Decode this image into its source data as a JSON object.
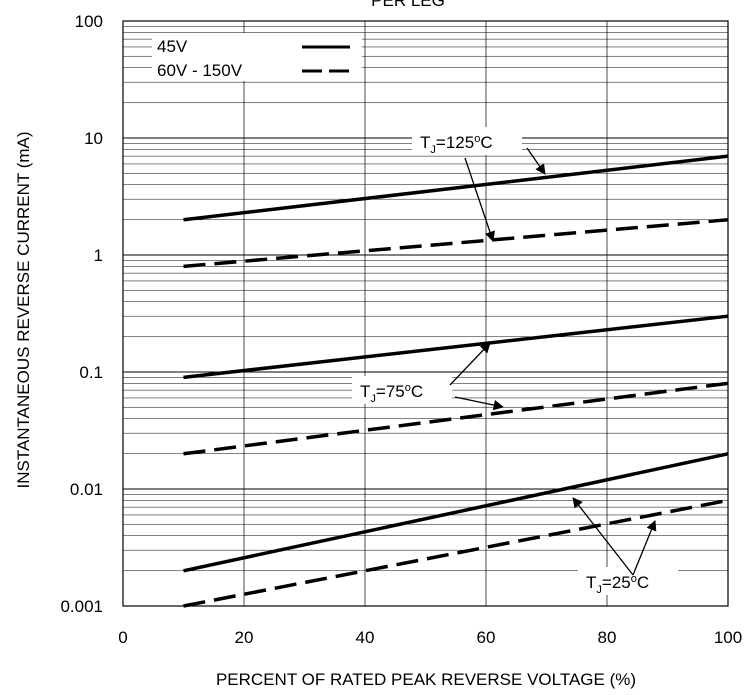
{
  "chart_data": {
    "type": "line",
    "title_partial": "PER LEG",
    "xlabel": "PERCENT OF RATED PEAK REVERSE VOLTAGE (%)",
    "ylabel": "INSTANTANEOUS REVERSE CURRENT (mA)",
    "xlim": [
      0,
      100
    ],
    "ylim": [
      0.001,
      100
    ],
    "yscale": "log",
    "grid": true,
    "xticks": [
      "0",
      "20",
      "40",
      "60",
      "80",
      "100"
    ],
    "yticks": [
      "0.001",
      "0.01",
      "0.1",
      "1",
      "10",
      "100"
    ],
    "legend_position": "top-left",
    "legend": [
      {
        "label": "45V",
        "style": "solid"
      },
      {
        "label": "60V - 150V",
        "style": "dashed"
      }
    ],
    "series": [
      {
        "group": "45V",
        "condition": "TJ=125°C",
        "style": "solid",
        "x": [
          10,
          100
        ],
        "y": [
          2,
          7
        ]
      },
      {
        "group": "60V - 150V",
        "condition": "TJ=125°C",
        "style": "dashed",
        "x": [
          10,
          100
        ],
        "y": [
          0.8,
          2
        ]
      },
      {
        "group": "45V",
        "condition": "TJ=75°C",
        "style": "solid",
        "x": [
          10,
          100
        ],
        "y": [
          0.09,
          0.3
        ]
      },
      {
        "group": "60V - 150V",
        "condition": "TJ=75°C",
        "style": "dashed",
        "x": [
          10,
          100
        ],
        "y": [
          0.02,
          0.08
        ]
      },
      {
        "group": "45V",
        "condition": "TJ=25°C",
        "style": "solid",
        "x": [
          10,
          100
        ],
        "y": [
          0.002,
          0.02
        ]
      },
      {
        "group": "60V - 150V",
        "condition": "TJ=25°C",
        "style": "dashed",
        "x": [
          10,
          100
        ],
        "y": [
          0.001,
          0.008
        ]
      }
    ],
    "annotations": [
      {
        "base": "T",
        "sub": "J",
        "mid": "=125",
        "sup": "o",
        "end": "C"
      },
      {
        "base": "T",
        "sub": "J",
        "mid": "=75",
        "sup": "o",
        "end": "C"
      },
      {
        "base": "T",
        "sub": "J",
        "mid": "=25",
        "sup": "o",
        "end": "C"
      }
    ]
  }
}
